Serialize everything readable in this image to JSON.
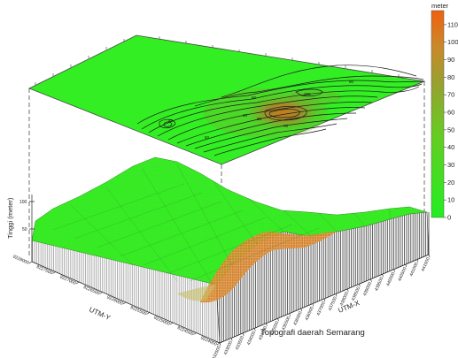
{
  "chart_data": {
    "type": "heatmap",
    "title": "Topografi daerah Semarang",
    "zlabel": "Tinggi (meter)",
    "xlabel": "UTM-X",
    "ylabel": "UTM-Y",
    "z_ticks": [
      "100",
      "50"
    ],
    "colorbar": {
      "unit": "meter",
      "ticks": [
        0,
        10,
        20,
        30,
        40,
        50,
        60,
        70,
        80,
        90,
        100,
        110
      ],
      "colors": {
        "low": "#22dd22",
        "mid": "#77aa33",
        "high": "#ee6611"
      }
    },
    "x_ticks": [
      "432500",
      "433000",
      "433500",
      "434000",
      "434500",
      "435000",
      "435500",
      "436000",
      "436500",
      "437000",
      "437500",
      "438000",
      "438500",
      "439000",
      "439500",
      "440000",
      "440500",
      "441000",
      "441500"
    ],
    "y_ticks": [
      "9228000",
      "9227500",
      "9227000",
      "9226500",
      "9226000",
      "9225500",
      "9225000",
      "9224500",
      "9224000"
    ],
    "contour_labels": [
      "40",
      "50",
      "60",
      "20",
      "80",
      "70",
      "90",
      "100"
    ]
  }
}
